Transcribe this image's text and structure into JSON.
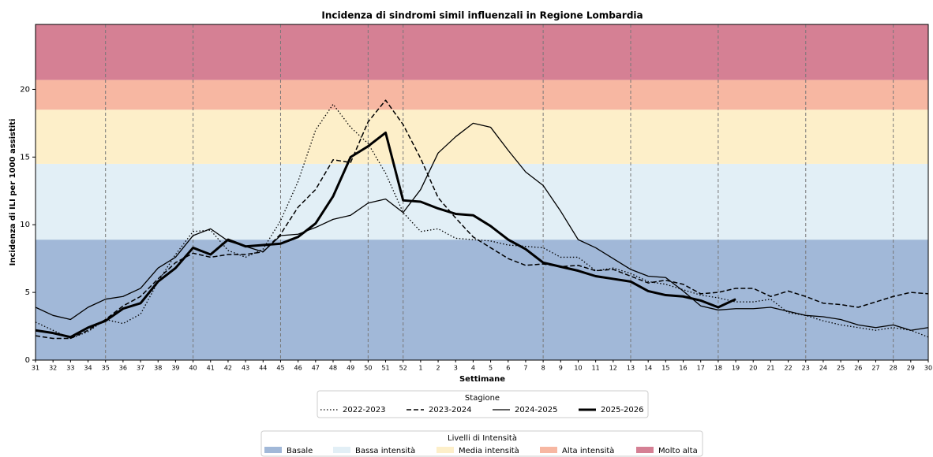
{
  "chart_data": {
    "type": "line",
    "title": "Incidenza di sindromi simil influenzali in Regione Lombardia",
    "x_label": "Settimane",
    "y_label": "Incidenza di ILI per 1000 assistiti",
    "categories": [
      "31",
      "32",
      "33",
      "34",
      "35",
      "36",
      "37",
      "38",
      "39",
      "40",
      "41",
      "42",
      "43",
      "44",
      "45",
      "46",
      "47",
      "48",
      "49",
      "50",
      "51",
      "52",
      "1",
      "2",
      "3",
      "4",
      "5",
      "6",
      "7",
      "8",
      "9",
      "10",
      "11",
      "12",
      "13",
      "14",
      "15",
      "16",
      "17",
      "18",
      "19",
      "20",
      "21",
      "22",
      "23",
      "24",
      "25",
      "26",
      "27",
      "28",
      "29",
      "30"
    ],
    "ylim": [
      0,
      24.8
    ],
    "yticks": [
      0,
      5,
      10,
      15,
      20
    ],
    "vlines": [
      "35",
      "40",
      "45",
      "50",
      "52",
      "8",
      "13",
      "18",
      "23",
      "28"
    ],
    "legend_title": "Stagione",
    "series": [
      {
        "name": "2022-2023",
        "color": "#000000",
        "linestyle": "dotted",
        "linewidth": 1.3,
        "values": [
          2.8,
          2.2,
          1.6,
          2.1,
          3.0,
          2.7,
          3.4,
          5.8,
          7.8,
          9.5,
          9.6,
          8.1,
          7.6,
          8.2,
          10.3,
          13.2,
          17.0,
          18.9,
          17.2,
          16.0,
          13.8,
          10.9,
          9.5,
          9.7,
          9.0,
          8.9,
          8.8,
          8.5,
          8.4,
          8.3,
          7.6,
          7.6,
          6.6,
          6.8,
          6.4,
          5.8,
          5.6,
          5.2,
          4.8,
          4.6,
          4.3,
          4.3,
          4.5,
          3.5,
          3.3,
          2.9,
          2.6,
          2.4,
          2.2,
          2.4,
          2.2,
          1.7
        ]
      },
      {
        "name": "2023-2024",
        "color": "#000000",
        "linestyle": "dashed",
        "linewidth": 1.5,
        "values": [
          1.8,
          1.6,
          1.6,
          2.2,
          3.0,
          4.0,
          4.7,
          6.0,
          7.2,
          7.9,
          7.6,
          7.8,
          7.8,
          8.0,
          9.3,
          11.3,
          12.6,
          14.8,
          14.6,
          17.6,
          19.2,
          17.4,
          14.9,
          12.0,
          10.5,
          9.1,
          8.3,
          7.5,
          7.0,
          7.1,
          6.9,
          7.0,
          6.6,
          6.7,
          6.2,
          5.7,
          5.9,
          5.6,
          4.9,
          5.0,
          5.3,
          5.3,
          4.7,
          5.1,
          4.7,
          4.2,
          4.1,
          3.9,
          4.3,
          4.7,
          5.0,
          4.9
        ]
      },
      {
        "name": "2024-2025",
        "color": "#000000",
        "linestyle": "solid",
        "linewidth": 1.3,
        "values": [
          3.9,
          3.3,
          3.0,
          3.9,
          4.5,
          4.7,
          5.3,
          6.8,
          7.6,
          9.2,
          9.7,
          8.8,
          8.4,
          8.0,
          9.2,
          9.3,
          9.8,
          10.4,
          10.7,
          11.6,
          11.9,
          10.9,
          12.6,
          15.3,
          16.5,
          17.5,
          17.2,
          15.5,
          13.9,
          12.9,
          11.0,
          8.9,
          8.3,
          7.5,
          6.7,
          6.2,
          6.1,
          5.1,
          4.0,
          3.7,
          3.8,
          3.8,
          3.9,
          3.6,
          3.3,
          3.2,
          3.0,
          2.6,
          2.4,
          2.6,
          2.2,
          2.4
        ]
      },
      {
        "name": "2025-2026",
        "color": "#000000",
        "linestyle": "solid",
        "linewidth": 3,
        "values": [
          2.2,
          2.0,
          1.7,
          2.4,
          2.9,
          3.8,
          4.2,
          5.8,
          6.8,
          8.3,
          7.8,
          8.9,
          8.4,
          8.5,
          8.6,
          9.1,
          10.1,
          12.1,
          15.0,
          15.8,
          16.8,
          11.8,
          11.7,
          11.2,
          10.8,
          10.7,
          9.9,
          8.9,
          8.2,
          7.2,
          6.9,
          6.6,
          6.2,
          6.0,
          5.8,
          5.1,
          4.8,
          4.7,
          4.4,
          3.9,
          4.5,
          null,
          null,
          null,
          null,
          null,
          null,
          null,
          null,
          null,
          null,
          null
        ]
      }
    ],
    "bands_title": "Livelli di Intensità",
    "bands": [
      {
        "name": "Basale",
        "color": "#a1b8d8",
        "range": [
          0,
          8.9
        ]
      },
      {
        "name": "Bassa intensità",
        "color": "#e2eff6",
        "range": [
          8.9,
          14.5
        ]
      },
      {
        "name": "Media intensità",
        "color": "#fdefc9",
        "range": [
          14.5,
          18.5
        ]
      },
      {
        "name": "Alta intensità",
        "color": "#f7b7a2",
        "range": [
          18.5,
          20.7
        ]
      },
      {
        "name": "Molto alta",
        "color": "#d58094",
        "range": [
          20.7,
          24.8
        ]
      }
    ]
  }
}
